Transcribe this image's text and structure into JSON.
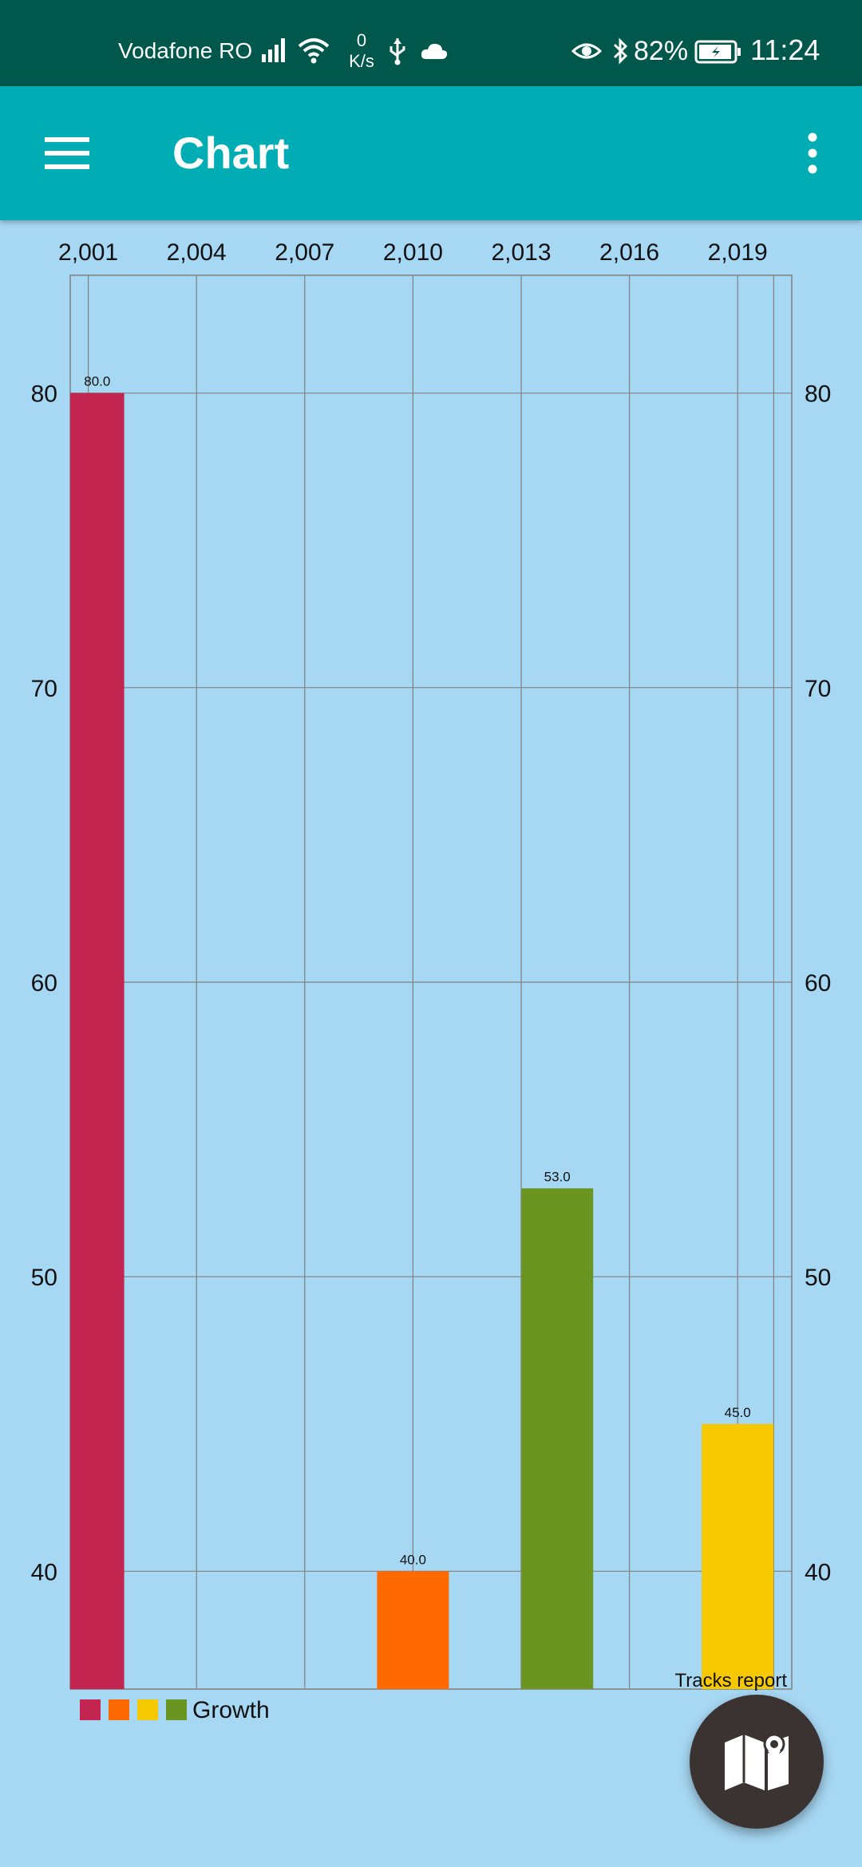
{
  "status_bar": {
    "carrier": "Vodafone RO",
    "net_speed_value": "0",
    "net_speed_unit": "K/s",
    "battery_percent": "82%",
    "time": "11:24",
    "icons": [
      "signal-icon",
      "wifi-icon",
      "usb-icon",
      "cloud-icon",
      "eye-comfort-icon",
      "bluetooth-icon",
      "battery-icon"
    ]
  },
  "app_bar": {
    "title": "Chart",
    "menu_icon": "hamburger-menu-icon",
    "overflow_icon": "more-vert-icon",
    "color": "#00adb5"
  },
  "chart_data": {
    "type": "bar",
    "title": "",
    "description_label": "Tracks report",
    "x_tick_labels": [
      "2,001",
      "2,004",
      "2,007",
      "2,010",
      "2,013",
      "2,016",
      "2,019"
    ],
    "y_tick_labels": [
      80,
      70,
      60,
      50,
      40
    ],
    "ylim": [
      36,
      84
    ],
    "grid": true,
    "series": [
      {
        "name": "Growth",
        "points": [
          {
            "x": 2001,
            "y": 80,
            "label": "80.0",
            "color": "#c2254f"
          },
          {
            "x": 2010,
            "y": 40,
            "label": "40.0",
            "color": "#ff6a00"
          },
          {
            "x": 2014,
            "y": 53,
            "label": "53.0",
            "color": "#6a9521"
          },
          {
            "x": 2019,
            "y": 45,
            "label": "45.0",
            "color": "#f5c800"
          }
        ]
      }
    ],
    "legend": {
      "position": "bottom-left",
      "colors": [
        "#c2254f",
        "#ff6a00",
        "#f5c800",
        "#6a9521"
      ],
      "label": "Growth"
    }
  },
  "fab": {
    "icon": "map-icon"
  },
  "colors": {
    "status_bar": "#00574b",
    "background": "#a6d7f3",
    "grid": "#808080"
  }
}
